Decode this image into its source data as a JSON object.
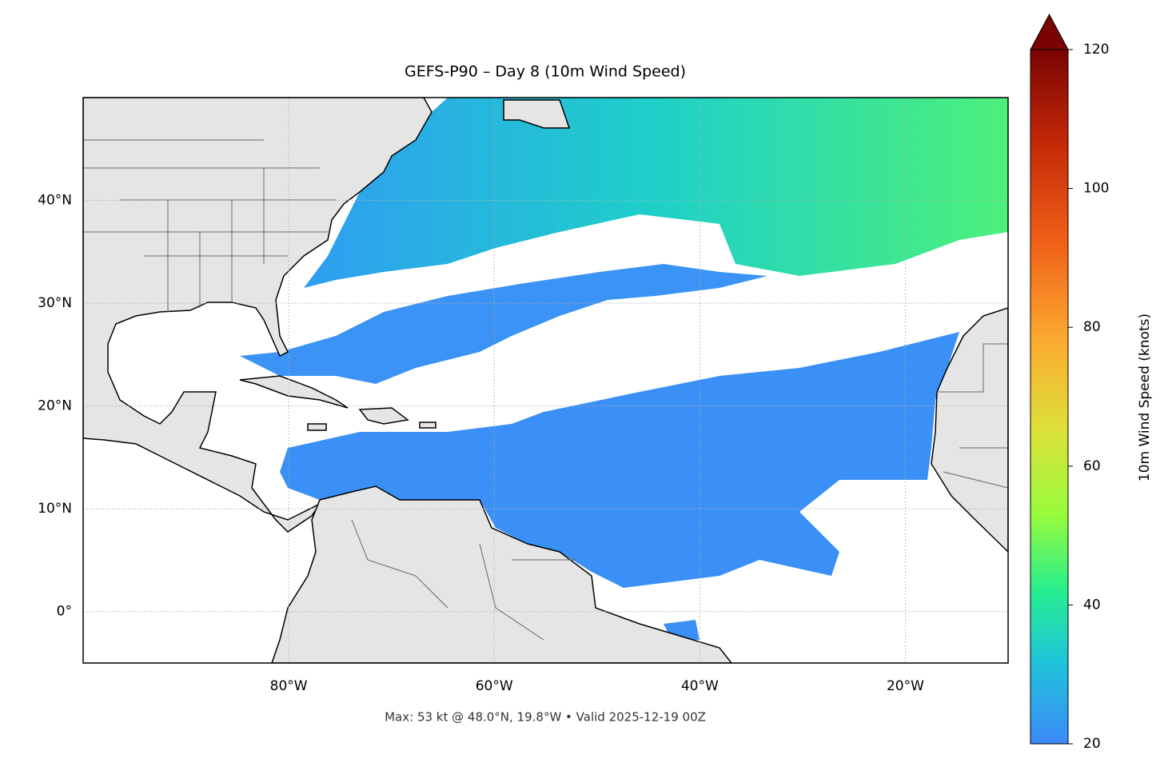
{
  "title": "GEFS-P90 – Day 8 (10m Wind Speed)",
  "footer": "Max: 53 kt @ 48.0°N, 19.8°W • Valid 2025-12-19 00Z",
  "map": {
    "lon_range": [
      -100,
      -10
    ],
    "lat_range": [
      -5,
      50
    ],
    "x_ticks": [
      {
        "value": -80,
        "label": "80°W"
      },
      {
        "value": -60,
        "label": "60°W"
      },
      {
        "value": -40,
        "label": "40°W"
      },
      {
        "value": -20,
        "label": "20°W"
      }
    ],
    "y_ticks": [
      {
        "value": 0,
        "label": "0°"
      },
      {
        "value": 10,
        "label": "10°N"
      },
      {
        "value": 20,
        "label": "20°N"
      },
      {
        "value": 30,
        "label": "30°N"
      },
      {
        "value": 40,
        "label": "40°N"
      }
    ]
  },
  "colorbar": {
    "label": "10m Wind Speed (knots)",
    "range": [
      20,
      120
    ],
    "ticks": [
      20,
      40,
      60,
      80,
      100,
      120
    ]
  }
}
